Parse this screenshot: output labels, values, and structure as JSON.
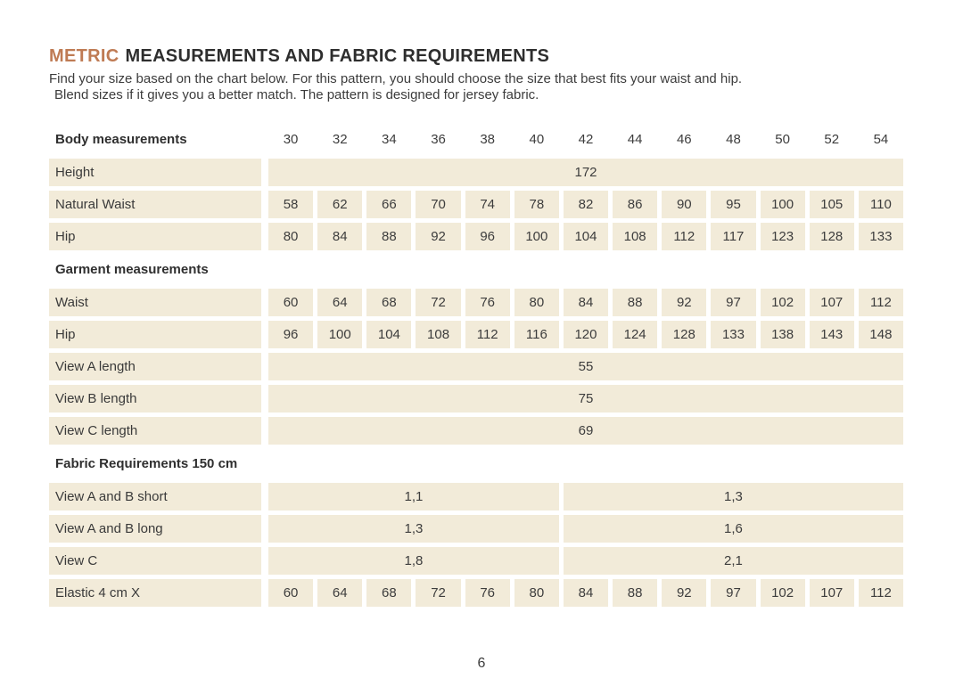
{
  "colors": {
    "accent": "#bf7b54",
    "cell_background": "#f2ebd9",
    "text": "#3a3a3a",
    "heading": "#2e2e2e"
  },
  "header": {
    "title_accent": "METRIC",
    "title_rest": "MEASUREMENTS AND FABRIC REQUIREMENTS",
    "intro_line1": "Find your size based on the chart below. For this pattern, you should choose the size that best fits your waist and hip.",
    "intro_line2": "Blend sizes if it gives you a better match.  The pattern is designed for jersey fabric."
  },
  "table": {
    "rows": [
      {
        "type": "section",
        "label": "Body measurements",
        "sizes": [
          "30",
          "32",
          "34",
          "36",
          "38",
          "40",
          "42",
          "44",
          "46",
          "48",
          "50",
          "52",
          "54"
        ]
      },
      {
        "type": "fullspan",
        "label": "Height",
        "value": "172"
      },
      {
        "type": "cells",
        "label": "Natural Waist",
        "values": [
          "58",
          "62",
          "66",
          "70",
          "74",
          "78",
          "82",
          "86",
          "90",
          "95",
          "100",
          "105",
          "110"
        ]
      },
      {
        "type": "cells",
        "label": "Hip",
        "values": [
          "80",
          "84",
          "88",
          "92",
          "96",
          "100",
          "104",
          "108",
          "112",
          "117",
          "123",
          "128",
          "133"
        ]
      },
      {
        "type": "section",
        "label": "Garment measurements"
      },
      {
        "type": "cells",
        "label": "Waist",
        "values": [
          "60",
          "64",
          "68",
          "72",
          "76",
          "80",
          "84",
          "88",
          "92",
          "97",
          "102",
          "107",
          "112"
        ]
      },
      {
        "type": "cells",
        "label": "Hip",
        "values": [
          "96",
          "100",
          "104",
          "108",
          "112",
          "116",
          "120",
          "124",
          "128",
          "133",
          "138",
          "143",
          "148"
        ]
      },
      {
        "type": "fullspan",
        "label": "View A length",
        "value": "55"
      },
      {
        "type": "fullspan",
        "label": "View B length",
        "value": "75"
      },
      {
        "type": "fullspan",
        "label": "View C length",
        "value": "69"
      },
      {
        "type": "section",
        "label": "Fabric Requirements 150 cm"
      },
      {
        "type": "twospan",
        "label": "View A and B  short",
        "left": "1,1",
        "right": "1,3"
      },
      {
        "type": "twospan",
        "label": "View A and B long",
        "left": "1,3",
        "right": "1,6"
      },
      {
        "type": "twospan",
        "label": "View C",
        "left": "1,8",
        "right": "2,1"
      },
      {
        "type": "cells",
        "label": "Elastic 4 cm X",
        "values": [
          "60",
          "64",
          "68",
          "72",
          "76",
          "80",
          "84",
          "88",
          "92",
          "97",
          "102",
          "107",
          "112"
        ]
      }
    ]
  },
  "footer": {
    "page_number": "6"
  }
}
